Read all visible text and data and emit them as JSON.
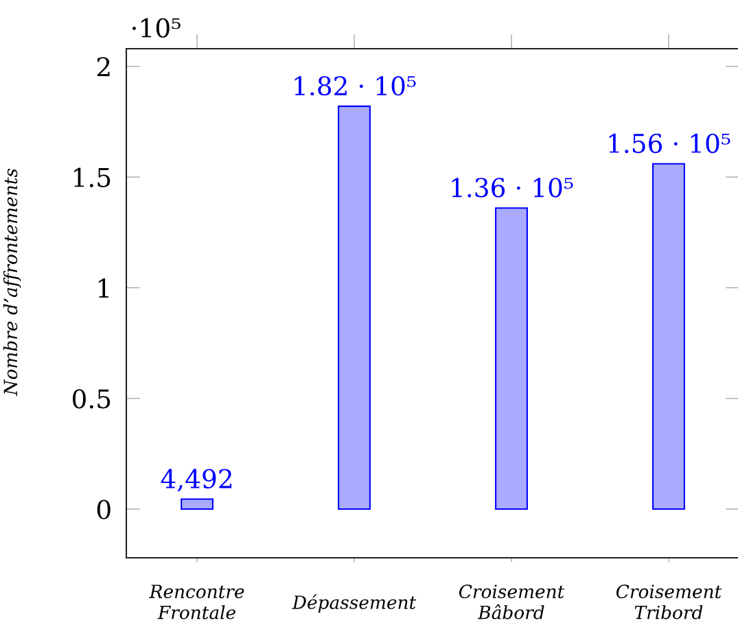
{
  "chart_data": {
    "type": "bar",
    "categories": [
      "Rencontre\nFrontale",
      "Dépassement",
      "Croisement\nBâbord",
      "Croisement\nTribord"
    ],
    "values": [
      0.045,
      1.82,
      1.36,
      1.56
    ],
    "color": "#aaaaff",
    "ylabel": "Nombre d’affrontements",
    "ylim": [
      -0.22,
      2.08
    ],
    "yticks": [
      0,
      0.5,
      1,
      1.5,
      2
    ],
    "annotations": [
      "·10⁵",
      {
        "text": "4,492",
        "x": "Rencontre\nFrontale",
        "y": 0.045
      },
      {
        "text": "1.82 · 10⁵",
        "x": "Dépassement",
        "y": 1.82
      },
      {
        "text": "1.36 · 10⁵",
        "x": "Croisement\nBâbord",
        "y": 1.36
      },
      {
        "text": "1.56 · 10⁵",
        "x": "Croisement\nTribord",
        "y": 1.56
      }
    ]
  }
}
